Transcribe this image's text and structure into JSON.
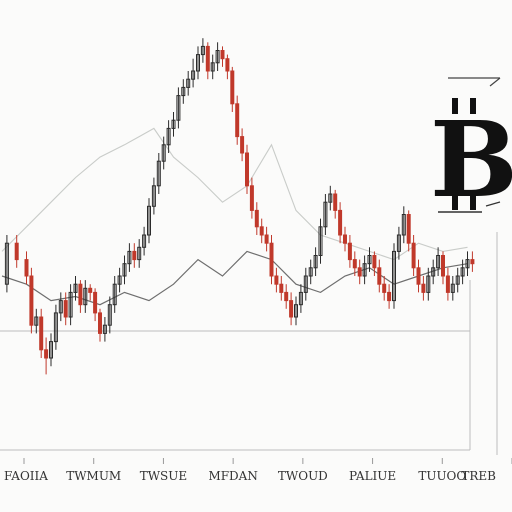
{
  "chart_data": {
    "type": "line",
    "title": "",
    "xlabel": "",
    "ylabel": "",
    "logo_symbol": "B",
    "logo_icon": "bitcoin-icon",
    "grid": false,
    "legend": "none",
    "x_tick_labels": [
      "FAOIIA",
      "TWMUM",
      "TWSUE",
      "MFDAN",
      "TWOUD",
      "PALIUE",
      "TUUOO",
      "TREB"
    ],
    "xlim": [
      0,
      100
    ],
    "ylim": [
      0,
      100
    ],
    "colors": {
      "down": "#c0392b",
      "up": "#2b2b2b",
      "background_line": "#c9ccc9",
      "secondary_line": "#6e6e6e",
      "baseline": "#bdbdbd"
    },
    "series": [
      {
        "type": "candlestick",
        "x": [
          1,
          3,
          5,
          6,
          7,
          8,
          9,
          10,
          11,
          12,
          13,
          14,
          15,
          16,
          17,
          18,
          19,
          20,
          21,
          22,
          23,
          24,
          25,
          26,
          27,
          28,
          29,
          30,
          31,
          32,
          33,
          34,
          35,
          36,
          37,
          38,
          39,
          40,
          41,
          42,
          43,
          44,
          45,
          46,
          47,
          48,
          49,
          50,
          51,
          52,
          53,
          54,
          55,
          56,
          57,
          58,
          59,
          60,
          61,
          62,
          63,
          64,
          65,
          66,
          67,
          68,
          69,
          70,
          71,
          72,
          73,
          74,
          75,
          76,
          77,
          78,
          79,
          80,
          81,
          82,
          83,
          84,
          85,
          86,
          87,
          88,
          89,
          90,
          91,
          92,
          93,
          94,
          95,
          96
        ],
        "open": [
          38,
          48,
          44,
          40,
          28,
          30,
          22,
          20,
          24,
          31,
          34,
          30,
          36,
          38,
          33,
          37,
          36,
          31,
          26,
          28,
          33,
          38,
          40,
          43,
          46,
          44,
          47,
          50,
          57,
          62,
          68,
          72,
          76,
          78,
          84,
          86,
          88,
          90,
          94,
          96,
          90,
          92,
          95,
          93,
          90,
          82,
          74,
          70,
          62,
          56,
          52,
          50,
          48,
          40,
          38,
          36,
          34,
          30,
          33,
          36,
          40,
          42,
          45,
          52,
          58,
          60,
          56,
          50,
          48,
          44,
          42,
          40,
          43,
          45,
          42,
          38,
          36,
          34,
          46,
          50,
          55,
          48,
          42,
          38,
          36,
          40,
          42,
          45,
          40,
          36,
          38,
          40,
          42,
          44
        ],
        "close": [
          48,
          44,
          40,
          28,
          30,
          22,
          20,
          24,
          31,
          34,
          30,
          36,
          38,
          33,
          37,
          36,
          31,
          26,
          28,
          33,
          38,
          40,
          43,
          46,
          44,
          47,
          50,
          57,
          62,
          68,
          72,
          76,
          78,
          84,
          86,
          88,
          90,
          94,
          96,
          90,
          92,
          95,
          93,
          90,
          82,
          74,
          70,
          62,
          56,
          52,
          50,
          48,
          40,
          38,
          36,
          34,
          30,
          33,
          36,
          40,
          42,
          45,
          52,
          58,
          60,
          56,
          50,
          48,
          44,
          42,
          40,
          43,
          45,
          42,
          38,
          36,
          34,
          46,
          50,
          55,
          48,
          42,
          38,
          36,
          40,
          42,
          45,
          40,
          36,
          38,
          40,
          42,
          44,
          43
        ],
        "high": [
          50,
          50,
          46,
          42,
          32,
          32,
          25,
          26,
          33,
          36,
          36,
          38,
          40,
          39,
          39,
          38,
          37,
          32,
          30,
          35,
          40,
          42,
          45,
          48,
          48,
          49,
          52,
          59,
          64,
          70,
          74,
          78,
          80,
          86,
          88,
          90,
          93,
          96,
          98,
          97,
          94,
          97,
          96,
          94,
          91,
          84,
          76,
          72,
          64,
          58,
          54,
          52,
          50,
          42,
          40,
          38,
          36,
          35,
          38,
          42,
          44,
          47,
          54,
          60,
          62,
          61,
          58,
          52,
          50,
          46,
          44,
          45,
          47,
          46,
          44,
          40,
          38,
          48,
          52,
          57,
          56,
          50,
          44,
          40,
          42,
          44,
          47,
          46,
          42,
          40,
          42,
          44,
          46,
          46
        ],
        "low": [
          36,
          42,
          38,
          26,
          26,
          20,
          16,
          18,
          22,
          29,
          28,
          28,
          34,
          31,
          31,
          34,
          29,
          24,
          24,
          26,
          31,
          36,
          38,
          41,
          42,
          42,
          45,
          48,
          55,
          60,
          66,
          70,
          74,
          76,
          82,
          84,
          86,
          88,
          92,
          88,
          88,
          90,
          91,
          88,
          80,
          72,
          68,
          60,
          54,
          50,
          48,
          46,
          38,
          36,
          34,
          32,
          28,
          28,
          31,
          34,
          38,
          40,
          43,
          50,
          56,
          54,
          48,
          46,
          42,
          40,
          38,
          38,
          41,
          40,
          36,
          34,
          32,
          32,
          44,
          48,
          46,
          40,
          36,
          34,
          34,
          38,
          40,
          38,
          34,
          34,
          36,
          38,
          40,
          41
        ]
      },
      {
        "name": "",
        "type": "line",
        "role": "background",
        "x": [
          0,
          5,
          10,
          15,
          20,
          25,
          28,
          31,
          35,
          40,
          45,
          50,
          55,
          60,
          65,
          70,
          75,
          80,
          85,
          90,
          95
        ],
        "y": [
          46,
          52,
          58,
          64,
          69,
          72,
          74,
          76,
          69,
          64,
          58,
          62,
          72,
          56,
          50,
          48,
          46,
          44,
          48,
          46,
          47
        ]
      },
      {
        "name": "",
        "type": "line",
        "role": "secondary",
        "x": [
          0,
          5,
          10,
          15,
          20,
          25,
          30,
          35,
          40,
          45,
          50,
          55,
          60,
          65,
          70,
          75,
          80,
          85,
          90,
          95
        ],
        "y": [
          40,
          38,
          34,
          35,
          33,
          36,
          34,
          38,
          44,
          40,
          46,
          44,
          38,
          36,
          40,
          42,
          38,
          40,
          42,
          43
        ]
      }
    ]
  }
}
